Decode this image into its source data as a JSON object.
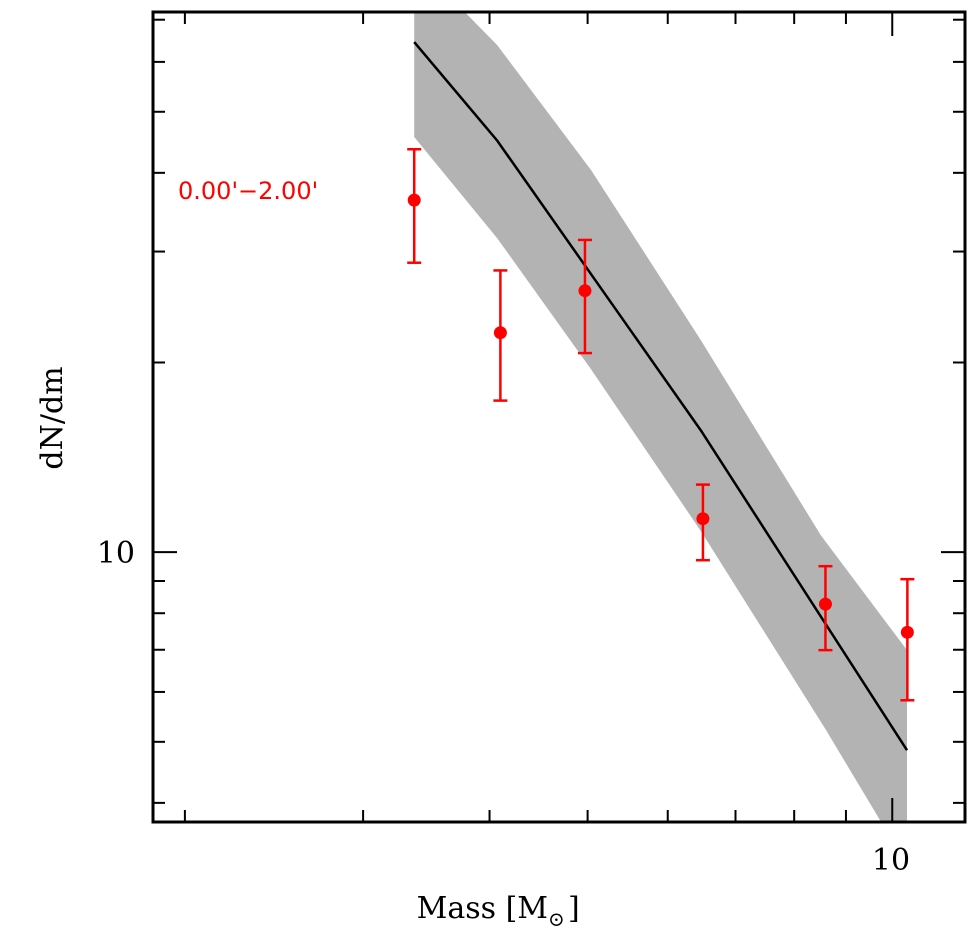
{
  "chart_data": {
    "type": "scatter",
    "title": "",
    "xlabel": "Mass [M",
    "xlabel_subscript": "⊙",
    "xlabel_close": "]",
    "ylabel": "dN/dm",
    "xscale": "log",
    "yscale": "log",
    "xlim": [
      1.86,
      11.8
    ],
    "ylim": [
      3.73,
      72
    ],
    "grid": false,
    "x_tick_labels": [
      {
        "value": 10,
        "label": "10"
      }
    ],
    "y_tick_labels": [
      {
        "value": 10,
        "label": "10"
      }
    ],
    "x_minor_ticks": [
      2,
      3,
      4,
      5,
      6,
      7,
      8,
      9
    ],
    "x_major_ticks": [
      10
    ],
    "y_minor_ticks": [
      4,
      5,
      6,
      7,
      8,
      9,
      20,
      30,
      40,
      50,
      60,
      70
    ],
    "y_major_ticks": [
      10
    ],
    "annotation": {
      "text": "0.00'−2.00'",
      "color": "#ff0000"
    },
    "series": [
      {
        "name": "observed",
        "type": "errorbar",
        "color": "#ff0000",
        "points": [
          {
            "x": 3.37,
            "y": 36.2,
            "y_low": 28.8,
            "y_high": 43.6
          },
          {
            "x": 4.1,
            "y": 22.3,
            "y_low": 17.4,
            "y_high": 28.0
          },
          {
            "x": 4.97,
            "y": 26.0,
            "y_low": 20.7,
            "y_high": 31.3
          },
          {
            "x": 6.5,
            "y": 11.3,
            "y_low": 9.71,
            "y_high": 12.8
          },
          {
            "x": 8.59,
            "y": 8.27,
            "y_low": 6.99,
            "y_high": 9.5
          },
          {
            "x": 10.35,
            "y": 7.46,
            "y_low": 5.82,
            "y_high": 9.06
          }
        ]
      },
      {
        "name": "model",
        "type": "line",
        "color": "#000000",
        "x": [
          3.37,
          4.07,
          6.47,
          10.34
        ],
        "y": [
          64.5,
          45.0,
          15.6,
          4.85
        ]
      },
      {
        "name": "model-band",
        "type": "area",
        "color": "#b3b3b3",
        "upper": {
          "x": [
            3.37,
            3.78,
            4.07,
            5.04,
            6.47,
            8.5,
            10.34
          ],
          "y": [
            72,
            72,
            63.8,
            40.4,
            21.7,
            10.64,
            6.99
          ]
        },
        "lower": {
          "x": [
            3.37,
            4.07,
            5.04,
            6.47,
            8.6,
            9.75,
            10.34
          ],
          "y": [
            45.6,
            31.5,
            19.5,
            10.8,
            5.22,
            3.73,
            3.73
          ]
        }
      }
    ]
  }
}
